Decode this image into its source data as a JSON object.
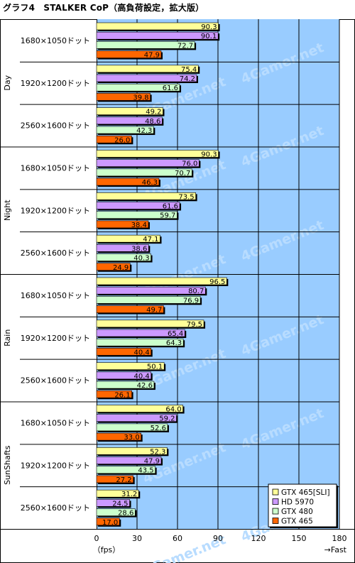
{
  "title": "グラフ4　STALKER CoP（高負荷設定，拡大版）",
  "watermark": "4Gamer.net",
  "colors": {
    "plot_bg": "#99ccff",
    "series": [
      "#ffff99",
      "#cc99ff",
      "#ccffcc",
      "#ff6600"
    ]
  },
  "chart_data": {
    "type": "bar",
    "orientation": "horizontal",
    "x_axis": {
      "min": 0,
      "max": 180,
      "ticks": [
        0,
        30,
        60,
        90,
        120,
        150,
        180
      ],
      "unit_label": "（fps）",
      "direction_label": "→Fast"
    },
    "grid": true,
    "legend_position": "bottom-right",
    "series_names": [
      "GTX 465[SLI]",
      "HD 5970",
      "GTX 480",
      "GTX 465"
    ],
    "groups": [
      {
        "name": "Day",
        "rows": [
          {
            "label": "1680×1050ドット",
            "values": [
              90.3,
              90.1,
              72.7,
              47.9
            ]
          },
          {
            "label": "1920×1200ドット",
            "values": [
              75.4,
              74.2,
              61.6,
              39.8
            ]
          },
          {
            "label": "2560×1600ドット",
            "values": [
              49.2,
              48.6,
              42.3,
              26.0
            ]
          }
        ]
      },
      {
        "name": "Night",
        "rows": [
          {
            "label": "1680×1050ドット",
            "values": [
              90.3,
              76.0,
              70.7,
              46.3
            ]
          },
          {
            "label": "1920×1200ドット",
            "values": [
              73.5,
              61.6,
              59.7,
              38.4
            ]
          },
          {
            "label": "2560×1600ドット",
            "values": [
              47.1,
              38.6,
              40.3,
              24.9
            ]
          }
        ]
      },
      {
        "name": "Rain",
        "rows": [
          {
            "label": "1680×1050ドット",
            "values": [
              96.5,
              80.7,
              76.9,
              49.7
            ]
          },
          {
            "label": "1920×1200ドット",
            "values": [
              79.5,
              65.4,
              64.3,
              40.4
            ]
          },
          {
            "label": "2560×1600ドット",
            "values": [
              50.1,
              40.4,
              42.6,
              26.1
            ]
          }
        ]
      },
      {
        "name": "SunShafts",
        "rows": [
          {
            "label": "1680×1050ドット",
            "values": [
              64.0,
              59.2,
              52.6,
              33.0
            ]
          },
          {
            "label": "1920×1200ドット",
            "values": [
              52.3,
              47.9,
              43.5,
              27.2
            ]
          },
          {
            "label": "2560×1600ドット",
            "values": [
              31.2,
              24.5,
              28.6,
              17.0
            ]
          }
        ]
      }
    ]
  }
}
